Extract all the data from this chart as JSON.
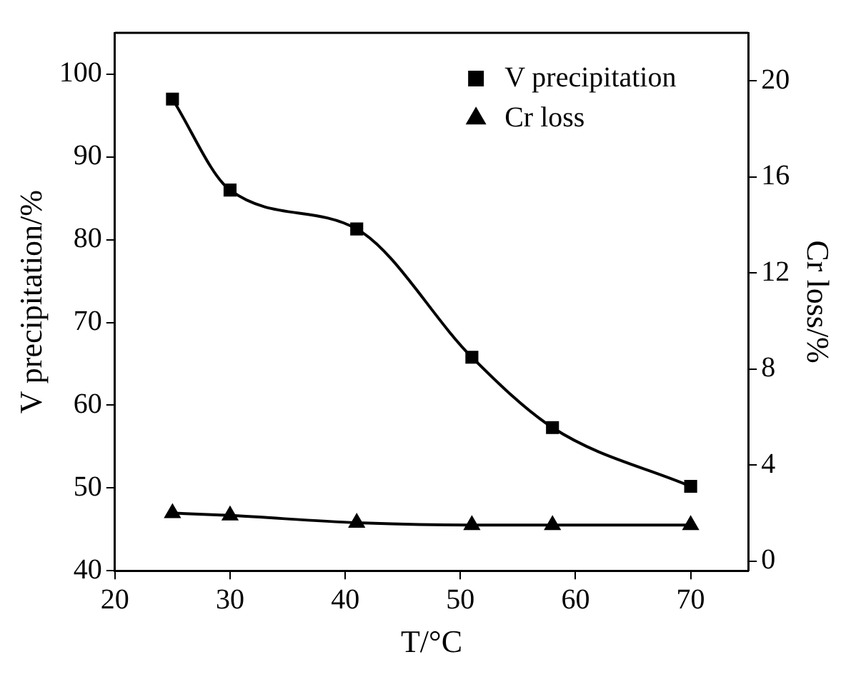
{
  "chart_data": {
    "type": "line",
    "xlabel": "T/°C",
    "ylabel": "V precipitation/%",
    "y2label": "Cr loss/%",
    "x": [
      25,
      30,
      41,
      51,
      58,
      70
    ],
    "series": [
      {
        "name": "V precipitation",
        "color": "#000000",
        "marker": "square",
        "values": [
          97,
          86,
          81.3,
          65.8,
          57.3,
          50.2
        ]
      },
      {
        "name": "Cr loss",
        "color": "#000000",
        "marker": "triangle",
        "axis": "y2",
        "values": [
          2.0,
          1.9,
          1.6,
          1.5,
          1.5,
          1.5
        ]
      }
    ],
    "xlim": [
      20,
      75
    ],
    "xticks": [
      20,
      30,
      40,
      50,
      60,
      70
    ],
    "ylim": [
      40,
      105
    ],
    "yticks": [
      40,
      50,
      60,
      70,
      80,
      90,
      100
    ],
    "y2lim": [
      -0.4,
      22
    ],
    "y2ticks": [
      0,
      4,
      8,
      12,
      16,
      20
    ],
    "grid": false,
    "legend": "top right",
    "line_style": "solid"
  }
}
